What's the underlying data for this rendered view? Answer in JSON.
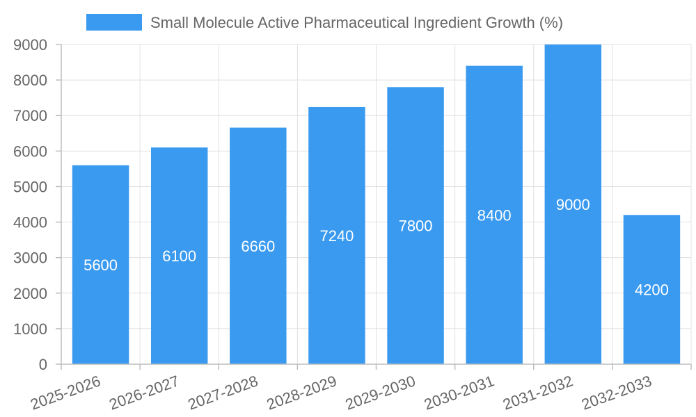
{
  "chart_data": {
    "type": "bar",
    "categories": [
      "2025-2026",
      "2026-2027",
      "2027-2028",
      "2028-2029",
      "2029-2030",
      "2030-2031",
      "2031-2032",
      "2032-2033"
    ],
    "series": [
      {
        "name": "Small Molecule Active Pharmaceutical Ingredient Growth (%)",
        "values": [
          5600,
          6100,
          6660,
          7240,
          7800,
          8400,
          9000,
          4200
        ],
        "color": "#3a9af0"
      }
    ],
    "ylim": [
      0,
      9000
    ],
    "yticks": [
      0,
      1000,
      2000,
      3000,
      4000,
      5000,
      6000,
      7000,
      8000,
      9000
    ],
    "grid": true,
    "legend_position": "top",
    "data_labels": true
  }
}
